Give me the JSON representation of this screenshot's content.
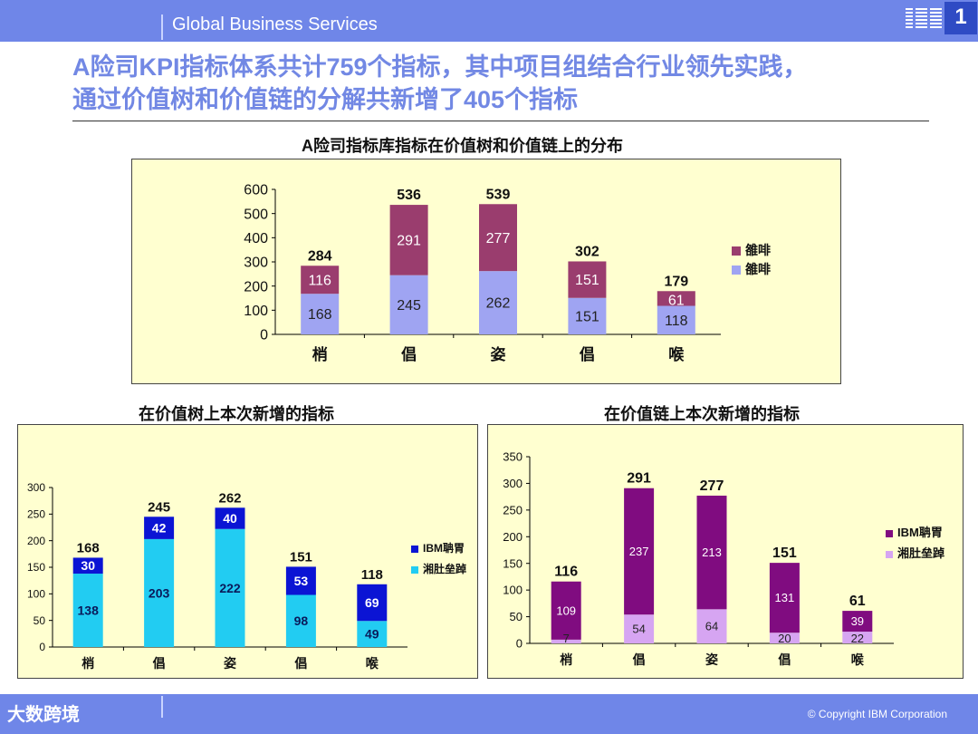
{
  "header": {
    "service": "Global Business Services",
    "page_number": "1",
    "logo": "IBM"
  },
  "headline": {
    "line1": "A险司KPI指标体系共计759个指标，其中项目组结合行业领先实践，",
    "line2": "通过价值树和价值链的分解共新增了405个指标"
  },
  "footer": {
    "copyright": "© Copyright IBM Corporation",
    "watermark": "大数跨境"
  },
  "colors": {
    "top_upper": "#9a3d6e",
    "top_lower": "#9fa4f2",
    "left_upper": "#0b14d4",
    "left_lower": "#22ccf2",
    "right_upper": "#800c80",
    "right_lower": "#d6a5f2"
  },
  "chart_data": [
    {
      "type": "bar",
      "stacked": true,
      "title": "A险司指标库指标在价值树和价值链上的分布",
      "categories": [
        "梢",
        "倡",
        "姿",
        "倡",
        "喉"
      ],
      "series": [
        {
          "name": "雒啡",
          "values": [
            168,
            245,
            262,
            151,
            118
          ]
        },
        {
          "name": "雒啡",
          "values": [
            116,
            291,
            277,
            151,
            61
          ]
        }
      ],
      "totals": [
        284,
        536,
        539,
        302,
        179
      ],
      "yticks": [
        0,
        100,
        200,
        300,
        400,
        500,
        600
      ],
      "ylim": [
        0,
        600
      ],
      "legend": "right"
    },
    {
      "type": "bar",
      "stacked": true,
      "title": "在价值树上本次新增的指标",
      "categories": [
        "梢",
        "倡",
        "姿",
        "倡",
        "喉"
      ],
      "series": [
        {
          "name": "湘肚垒踔",
          "values": [
            138,
            203,
            222,
            98,
            49
          ]
        },
        {
          "name": "IBM聃胃",
          "values": [
            30,
            42,
            40,
            53,
            69
          ]
        }
      ],
      "totals": [
        168,
        245,
        262,
        151,
        118
      ],
      "yticks": [
        0,
        50,
        100,
        150,
        200,
        250,
        300
      ],
      "ylim": [
        0,
        300
      ],
      "legend": "right"
    },
    {
      "type": "bar",
      "stacked": true,
      "title": "在价值链上本次新增的指标",
      "categories": [
        "梢",
        "倡",
        "姿",
        "倡",
        "喉"
      ],
      "series": [
        {
          "name": "湘肚垒踔",
          "values": [
            7,
            54,
            64,
            20,
            22
          ]
        },
        {
          "name": "IBM聃胃",
          "values": [
            109,
            237,
            213,
            131,
            39
          ]
        }
      ],
      "totals": [
        116,
        291,
        277,
        151,
        61
      ],
      "yticks": [
        0,
        50,
        100,
        150,
        200,
        250,
        300,
        350
      ],
      "ylim": [
        0,
        350
      ],
      "legend": "right"
    }
  ]
}
